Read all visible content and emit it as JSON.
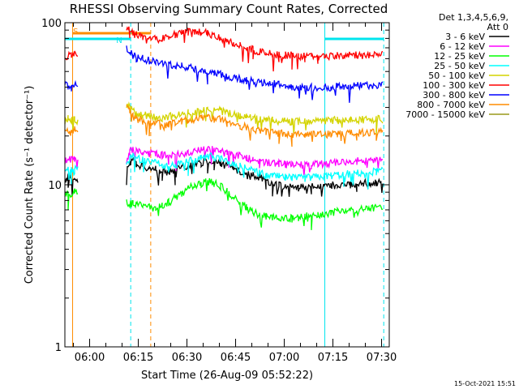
{
  "chart_data": {
    "type": "line",
    "title": "RHESSI Observing Summary Count Rates, Corrected",
    "xlabel": "Start Time (26-Aug-09 05:52:22)",
    "ylabel": "Corrected Count Rate (s⁻¹ detector⁻¹)",
    "yscale": "log",
    "ylim": [
      1,
      100
    ],
    "yticks": [
      "1",
      "10",
      "100"
    ],
    "xlim": [
      "05:52:22",
      "07:32:22"
    ],
    "xticks": [
      "06:00",
      "06:15",
      "06:30",
      "06:45",
      "07:00",
      "07:15",
      "07:30"
    ],
    "legend_placement": "top-right",
    "legend_header": [
      "Det 1,3,4,5,6,9,",
      "Att 0"
    ],
    "markers": [
      {
        "label": "S",
        "color": "#ff8c00",
        "kind": "saa",
        "x_start": "05:54:45",
        "x_end": "06:18:50"
      },
      {
        "label": "N",
        "color": "#00e5ee",
        "kind": "night",
        "x_start": "05:52:22",
        "x_end": "06:12:40"
      },
      {
        "label": "",
        "color": "#00e5ee",
        "kind": "night",
        "x_start": "07:12:30",
        "x_end": "07:30:40"
      }
    ],
    "x_minutes": [
      0,
      1,
      2,
      3,
      4,
      18,
      19,
      20,
      21,
      22,
      24,
      26,
      28,
      30,
      32,
      34,
      36,
      38,
      40,
      42,
      44,
      46,
      48,
      50,
      52,
      54,
      56,
      58,
      60,
      62,
      64,
      66,
      68,
      70,
      72,
      74,
      76,
      78,
      80,
      82,
      84,
      86,
      88,
      90,
      92,
      94,
      96,
      98
    ],
    "series": [
      {
        "name": "3 - 6 keV",
        "color": "#000000",
        "values": [
          10.5,
          11.2,
          10.8,
          11,
          10.3,
          null,
          12,
          13.5,
          14,
          13.2,
          13,
          12.8,
          12.5,
          12.2,
          12,
          12.4,
          12.8,
          13,
          13.4,
          13.6,
          14,
          13.8,
          13.6,
          13,
          12.5,
          12.2,
          11.9,
          11.6,
          11.2,
          10.6,
          10.2,
          10,
          9.8,
          9.7,
          9.6,
          9.6,
          9.7,
          9.8,
          9.8,
          9.9,
          10,
          10,
          10,
          10.1,
          10.2,
          10.2,
          10.2,
          10.3
        ]
      },
      {
        "name": "6 - 12 keV",
        "color": "#ff00ff",
        "values": [
          14,
          14.5,
          14.2,
          14.5,
          14,
          null,
          14.5,
          16,
          16.5,
          16,
          15.8,
          15.6,
          15.4,
          15.2,
          15,
          15.2,
          15.5,
          15.8,
          16,
          16.3,
          16.6,
          16.5,
          16.2,
          15.8,
          15.4,
          15,
          14.6,
          14.3,
          14,
          13.8,
          13.6,
          13.5,
          13.4,
          13.3,
          13.3,
          13.2,
          13.3,
          13.4,
          13.5,
          13.6,
          13.7,
          13.8,
          13.9,
          14,
          14.1,
          14.1,
          14.2,
          14.3
        ]
      },
      {
        "name": "12 - 25 keV",
        "color": "#00ff00",
        "values": [
          8.5,
          9,
          8.7,
          9.2,
          8.8,
          null,
          8,
          7.5,
          7.8,
          7.6,
          7.4,
          7.3,
          7.2,
          7.4,
          7.8,
          8.3,
          8.8,
          9.4,
          10,
          10.3,
          10.5,
          10.2,
          9.8,
          9.1,
          8.4,
          7.8,
          7.2,
          6.8,
          6.5,
          6.4,
          6.3,
          6.2,
          6.2,
          6.2,
          6.3,
          6.4,
          6.5,
          6.6,
          6.6,
          6.7,
          6.8,
          6.9,
          7,
          7,
          7.1,
          7.1,
          7.2,
          7.2
        ]
      },
      {
        "name": "25 - 50 keV",
        "color": "#00ffff",
        "values": [
          12,
          12.5,
          12.2,
          12.8,
          12.3,
          null,
          13,
          14.5,
          15,
          14.5,
          14.2,
          14,
          13.6,
          13.3,
          13,
          13.3,
          13.7,
          14,
          14.4,
          14.7,
          15,
          14.8,
          14.4,
          14,
          13.5,
          13,
          12.6,
          12.2,
          11.8,
          11.5,
          11.3,
          11.2,
          11.1,
          11,
          11,
          11,
          11.1,
          11.2,
          11.3,
          11.4,
          11.5,
          11.6,
          11.7,
          11.8,
          11.9,
          12,
          12.1,
          12.2
        ]
      },
      {
        "name": "50 - 100 keV",
        "color": "#d4d400",
        "values": [
          25,
          25.5,
          25,
          25.8,
          25.2,
          null,
          31,
          30,
          28.5,
          27.5,
          27,
          26.5,
          26.2,
          26,
          26.3,
          26.8,
          27.3,
          27.8,
          28.3,
          28.8,
          29.2,
          29,
          28.5,
          27.8,
          27.2,
          26.6,
          26.1,
          25.7,
          25.4,
          25.2,
          25,
          24.8,
          24.7,
          24.6,
          24.6,
          24.6,
          24.7,
          24.8,
          24.9,
          25,
          25,
          25.1,
          25.2,
          25.3,
          25.4,
          25.5,
          25.5,
          25.6
        ]
      },
      {
        "name": "100 - 300 keV",
        "color": "#ff0000",
        "values": [
          62,
          63,
          62,
          64,
          63,
          null,
          95,
          90,
          86,
          84,
          82,
          80,
          79,
          80,
          82,
          84,
          86,
          88,
          89,
          88,
          86,
          84,
          81,
          78,
          75,
          72,
          70,
          68,
          66,
          65,
          64,
          63.5,
          63,
          63,
          62.5,
          62.5,
          62.5,
          62.5,
          62.5,
          62.5,
          63,
          63,
          63,
          63,
          63,
          63,
          63,
          63
        ]
      },
      {
        "name": "300 - 800 keV",
        "color": "#0000ff",
        "values": [
          41,
          41.5,
          41,
          42,
          41.5,
          null,
          70,
          66,
          63,
          61,
          60,
          58.5,
          57,
          56,
          55,
          54.5,
          54,
          53,
          52,
          51,
          50,
          49,
          48,
          47,
          46,
          45,
          44,
          43.5,
          43,
          42.5,
          42,
          41.5,
          41,
          40.5,
          40,
          40,
          40,
          40,
          40,
          40,
          40.5,
          40.5,
          40.5,
          41,
          41,
          41,
          41,
          41
        ]
      },
      {
        "name": "800 - 7000 keV",
        "color": "#ff8c00",
        "values": [
          21,
          21.5,
          21,
          21.8,
          21.2,
          null,
          31,
          28.5,
          26.5,
          25.5,
          24.8,
          24.3,
          23.9,
          23.7,
          23.8,
          24.2,
          24.6,
          25,
          25.4,
          25.8,
          26,
          25.7,
          25.2,
          24.6,
          23.9,
          23.2,
          22.6,
          22.1,
          21.7,
          21.4,
          21.1,
          20.9,
          20.7,
          20.6,
          20.5,
          20.4,
          20.4,
          20.4,
          20.5,
          20.5,
          20.6,
          20.7,
          20.8,
          20.9,
          21,
          21,
          21.1,
          21.2
        ]
      },
      {
        "name": "7000 - 15000 keV",
        "color": "#9a9a1a",
        "values": []
      }
    ]
  },
  "footer": {
    "timestamp": "15-Oct-2021 15:51"
  }
}
